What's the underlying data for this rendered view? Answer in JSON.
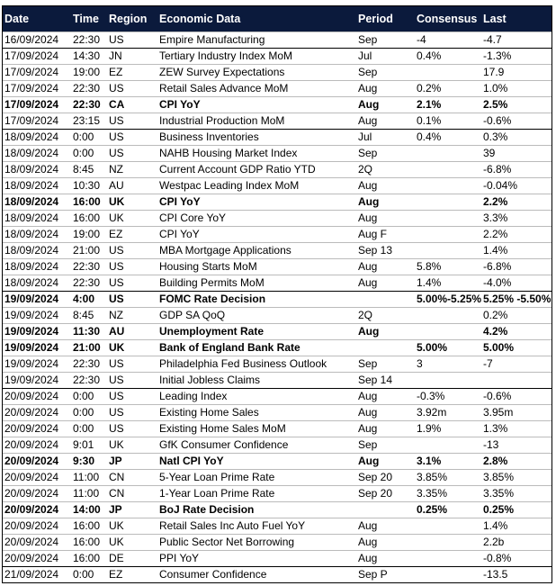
{
  "table": {
    "header": [
      "Date",
      "Time",
      "Region",
      "Economic Data",
      "Period",
      "Consensus",
      "Last"
    ],
    "rows": [
      {
        "cells": [
          "16/09/2024",
          "22:30",
          "US",
          "Empire Manufacturing",
          "Sep",
          "-4",
          "-4.7"
        ]
      },
      {
        "cells": [
          "17/09/2024",
          "14:30",
          "JN",
          "Tertiary Industry Index MoM",
          "Jul",
          "0.4%",
          "-1.3%"
        ]
      },
      {
        "cells": [
          "17/09/2024",
          "19:00",
          "EZ",
          "ZEW Survey Expectations",
          "Sep",
          null,
          "17.9"
        ]
      },
      {
        "cells": [
          "17/09/2024",
          "22:30",
          "US",
          "Retail Sales Advance MoM",
          "Aug",
          "0.2%",
          "1.0%"
        ]
      },
      {
        "cells": [
          "17/09/2024",
          "22:30",
          "CA",
          "CPI YoY",
          "Aug",
          "2.1%",
          "2.5%"
        ],
        "bold": true
      },
      {
        "cells": [
          "17/09/2024",
          "23:15",
          "US",
          "Industrial Production MoM",
          "Aug",
          "0.1%",
          "-0.6%"
        ]
      },
      {
        "cells": [
          "18/09/2024",
          "0:00",
          "US",
          "Business Inventories",
          "Jul",
          "0.4%",
          "0.3%"
        ]
      },
      {
        "cells": [
          "18/09/2024",
          "0:00",
          "US",
          "NAHB Housing Market Index",
          "Sep",
          null,
          "39"
        ]
      },
      {
        "cells": [
          "18/09/2024",
          "8:45",
          "NZ",
          "Current Account GDP Ratio YTD",
          "2Q",
          null,
          "-6.8%"
        ]
      },
      {
        "cells": [
          "18/09/2024",
          "10:30",
          "AU",
          "Westpac Leading Index MoM",
          "Aug",
          null,
          "-0.04%"
        ]
      },
      {
        "cells": [
          "18/09/2024",
          "16:00",
          "UK",
          "CPI YoY",
          "Aug",
          null,
          "2.2%"
        ],
        "bold": true
      },
      {
        "cells": [
          "18/09/2024",
          "16:00",
          "UK",
          "CPI Core YoY",
          "Aug",
          null,
          "3.3%"
        ]
      },
      {
        "cells": [
          "18/09/2024",
          "19:00",
          "EZ",
          "CPI YoY",
          "Aug F",
          null,
          "2.2%"
        ]
      },
      {
        "cells": [
          "18/09/2024",
          "21:00",
          "US",
          "MBA Mortgage Applications",
          "Sep 13",
          null,
          "1.4%"
        ]
      },
      {
        "cells": [
          "18/09/2024",
          "22:30",
          "US",
          "Housing Starts MoM",
          "Aug",
          "5.8%",
          "-6.8%"
        ]
      },
      {
        "cells": [
          "18/09/2024",
          "22:30",
          "US",
          "Building Permits MoM",
          "Aug",
          "1.4%",
          "-4.0%"
        ]
      },
      {
        "cells": [
          "19/09/2024",
          "4:00",
          "US",
          "FOMC Rate Decision",
          null,
          "5.00%-5.25%",
          "5.25% -5.50%"
        ],
        "bold": true
      },
      {
        "cells": [
          "19/09/2024",
          "8:45",
          "NZ",
          "GDP SA QoQ",
          "2Q",
          null,
          "0.2%"
        ]
      },
      {
        "cells": [
          "19/09/2024",
          "11:30",
          "AU",
          "Unemployment Rate",
          "Aug",
          null,
          "4.2%"
        ],
        "bold": true
      },
      {
        "cells": [
          "19/09/2024",
          "21:00",
          "UK",
          "Bank of England Bank Rate",
          null,
          "5.00%",
          "5.00%"
        ],
        "bold": true
      },
      {
        "cells": [
          "19/09/2024",
          "22:30",
          "US",
          "Philadelphia Fed Business Outlook",
          "Sep",
          "3",
          "-7"
        ]
      },
      {
        "cells": [
          "19/09/2024",
          "22:30",
          "US",
          "Initial Jobless Claims",
          "Sep 14",
          null,
          null
        ]
      },
      {
        "cells": [
          "20/09/2024",
          "0:00",
          "US",
          "Leading Index",
          "Aug",
          "-0.3%",
          "-0.6%"
        ]
      },
      {
        "cells": [
          "20/09/2024",
          "0:00",
          "US",
          "Existing Home Sales",
          "Aug",
          "3.92m",
          "3.95m"
        ]
      },
      {
        "cells": [
          "20/09/2024",
          "0:00",
          "US",
          "Existing Home Sales MoM",
          "Aug",
          "1.9%",
          "1.3%"
        ]
      },
      {
        "cells": [
          "20/09/2024",
          "9:01",
          "UK",
          "GfK Consumer Confidence",
          "Sep",
          null,
          "-13"
        ]
      },
      {
        "cells": [
          "20/09/2024",
          "9:30",
          "JP",
          "Natl CPI YoY",
          "Aug",
          "3.1%",
          "2.8%"
        ],
        "bold": true
      },
      {
        "cells": [
          "20/09/2024",
          "11:00",
          "CN",
          "5-Year Loan Prime Rate",
          "Sep 20",
          "3.85%",
          "3.85%"
        ]
      },
      {
        "cells": [
          "20/09/2024",
          "11:00",
          "CN",
          "1-Year Loan Prime Rate",
          "Sep 20",
          "3.35%",
          "3.35%"
        ]
      },
      {
        "cells": [
          "20/09/2024",
          "14:00",
          "JP",
          "BoJ Rate Decision",
          null,
          "0.25%",
          "0.25%"
        ],
        "bold": true
      },
      {
        "cells": [
          "20/09/2024",
          "16:00",
          "UK",
          "Retail Sales Inc Auto Fuel YoY",
          "Aug",
          null,
          "1.4%"
        ]
      },
      {
        "cells": [
          "20/09/2024",
          "16:00",
          "UK",
          "Public Sector Net Borrowing",
          "Aug",
          null,
          "2.2b"
        ]
      },
      {
        "cells": [
          "20/09/2024",
          "16:00",
          "DE",
          "PPI YoY",
          "Aug",
          null,
          "-0.8%"
        ]
      },
      {
        "cells": [
          "21/09/2024",
          "0:00",
          "EZ",
          "Consumer Confidence",
          "Sep P",
          null,
          "-13.5"
        ]
      }
    ]
  }
}
